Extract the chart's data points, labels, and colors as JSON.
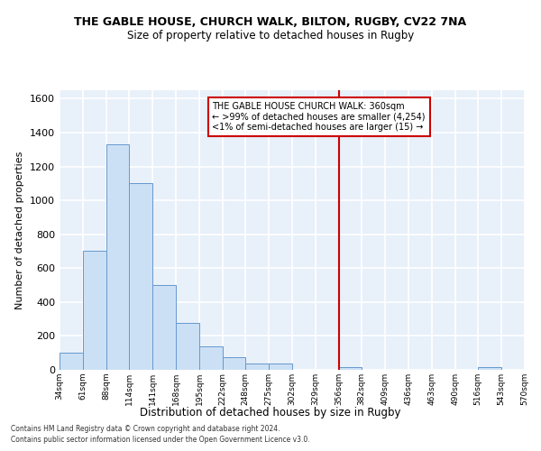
{
  "title": "THE GABLE HOUSE, CHURCH WALK, BILTON, RUGBY, CV22 7NA",
  "subtitle": "Size of property relative to detached houses in Rugby",
  "xlabel": "Distribution of detached houses by size in Rugby",
  "ylabel": "Number of detached properties",
  "bar_color": "#cce0f5",
  "bar_edge_color": "#6699cc",
  "background_color": "#e8f0fa",
  "grid_color": "#ffffff",
  "fig_color": "#ffffff",
  "vline_color": "#cc0000",
  "vline_x": 356,
  "bin_edges": [
    34,
    61,
    88,
    114,
    141,
    168,
    195,
    222,
    248,
    275,
    302,
    329,
    356,
    382,
    409,
    436,
    463,
    490,
    516,
    543,
    570
  ],
  "bar_heights": [
    100,
    700,
    1330,
    1100,
    500,
    275,
    140,
    75,
    35,
    35,
    0,
    0,
    15,
    0,
    0,
    0,
    0,
    0,
    15,
    0
  ],
  "tick_labels": [
    "34sqm",
    "61sqm",
    "88sqm",
    "114sqm",
    "141sqm",
    "168sqm",
    "195sqm",
    "222sqm",
    "248sqm",
    "275sqm",
    "302sqm",
    "329sqm",
    "356sqm",
    "382sqm",
    "409sqm",
    "436sqm",
    "463sqm",
    "490sqm",
    "516sqm",
    "543sqm",
    "570sqm"
  ],
  "ylim": [
    0,
    1650
  ],
  "yticks": [
    0,
    200,
    400,
    600,
    800,
    1000,
    1200,
    1400,
    1600
  ],
  "annotation_title": "THE GABLE HOUSE CHURCH WALK: 360sqm",
  "annotation_line1": "← >99% of detached houses are smaller (4,254)",
  "annotation_line2": "<1% of semi-detached houses are larger (15) →",
  "annotation_box_color": "#ffffff",
  "annotation_border_color": "#cc0000",
  "footer_line1": "Contains HM Land Registry data © Crown copyright and database right 2024.",
  "footer_line2": "Contains public sector information licensed under the Open Government Licence v3.0."
}
